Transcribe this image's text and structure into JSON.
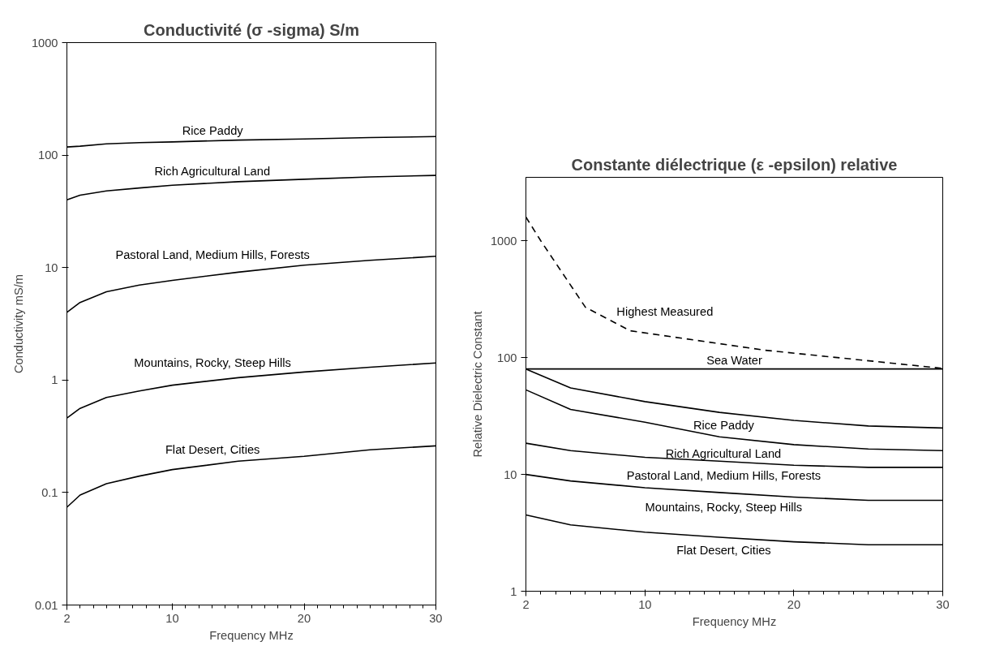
{
  "chart_data": [
    {
      "type": "line",
      "title": "Conductivité (σ -sigma) S/m",
      "xlabel": "Frequency MHz",
      "ylabel": "Conductivity mS/m",
      "log": "y",
      "grid": false,
      "marker": "none",
      "line_style": "solid",
      "x": [
        2,
        3,
        5,
        7.5,
        10,
        15,
        20,
        25,
        30
      ],
      "xlim": [
        2,
        30
      ],
      "xticks": [
        2,
        10,
        20,
        30
      ],
      "ylim": [
        0.01,
        1000
      ],
      "yticks": [
        0.01,
        0.1,
        1,
        10,
        100,
        1000
      ],
      "series": [
        {
          "name": "Rice Paddy",
          "color": "#000000",
          "values": [
            118,
            120,
            126,
            129,
            131,
            136,
            139,
            143,
            146
          ]
        },
        {
          "name": "Rich Agricultural Land",
          "color": "#000000",
          "values": [
            40,
            44,
            48,
            51,
            54,
            58,
            61,
            64,
            66
          ]
        },
        {
          "name": "Pastoral Land, Medium Hills, Forests",
          "color": "#000000",
          "values": [
            4.0,
            4.9,
            6.1,
            7.0,
            7.7,
            9.1,
            10.5,
            11.6,
            12.6
          ]
        },
        {
          "name": "Mountains, Rocky, Steep Hills",
          "color": "#000000",
          "values": [
            0.46,
            0.56,
            0.7,
            0.8,
            0.9,
            1.05,
            1.18,
            1.3,
            1.42
          ]
        },
        {
          "name": "Flat Desert, Cities",
          "color": "#000000",
          "values": [
            0.074,
            0.095,
            0.12,
            0.14,
            0.16,
            0.19,
            0.21,
            0.24,
            0.26
          ]
        }
      ]
    },
    {
      "type": "line",
      "title": "Constante diélectrique (ε -epsilon) relative",
      "xlabel": "Frequency MHz",
      "ylabel": "Relative Dielectric Constant",
      "log": "y",
      "grid": false,
      "marker": "none",
      "line_style": "solid",
      "x": [
        2,
        5,
        10,
        15,
        20,
        25,
        30
      ],
      "xlim": [
        2,
        30
      ],
      "xticks": [
        2,
        10,
        20,
        30
      ],
      "ylim": [
        1,
        3500
      ],
      "yticks": [
        1,
        10,
        100,
        1000
      ],
      "series": [
        {
          "name": "Highest Measured",
          "color": "#000000",
          "line_style": "dashed",
          "x": [
            2,
            3,
            6,
            9,
            18,
            30
          ],
          "values": [
            1600,
            1000,
            270,
            170,
            116,
            81
          ]
        },
        {
          "name": "Sea Water",
          "color": "#000000",
          "x": [
            2,
            30
          ],
          "values": [
            80,
            80
          ]
        },
        {
          "name": "Rice Paddy",
          "color": "#000000",
          "values": [
            80,
            55,
            42,
            34,
            29,
            26,
            25
          ]
        },
        {
          "name": "Rich Agricultural Land",
          "color": "#000000",
          "values": [
            53,
            36,
            28,
            21,
            18,
            16.5,
            16
          ]
        },
        {
          "name": "Pastoral Land, Medium Hills, Forests",
          "color": "#000000",
          "values": [
            18.5,
            16,
            14,
            13,
            12,
            11.5,
            11.5
          ]
        },
        {
          "name": "Mountains, Rocky, Steep Hills",
          "color": "#000000",
          "values": [
            10,
            8.8,
            7.7,
            7,
            6.4,
            6.0,
            6.0
          ]
        },
        {
          "name": "Flat Desert, Cities",
          "color": "#000000",
          "values": [
            4.5,
            3.7,
            3.2,
            2.9,
            2.65,
            2.5,
            2.5
          ]
        }
      ]
    }
  ]
}
